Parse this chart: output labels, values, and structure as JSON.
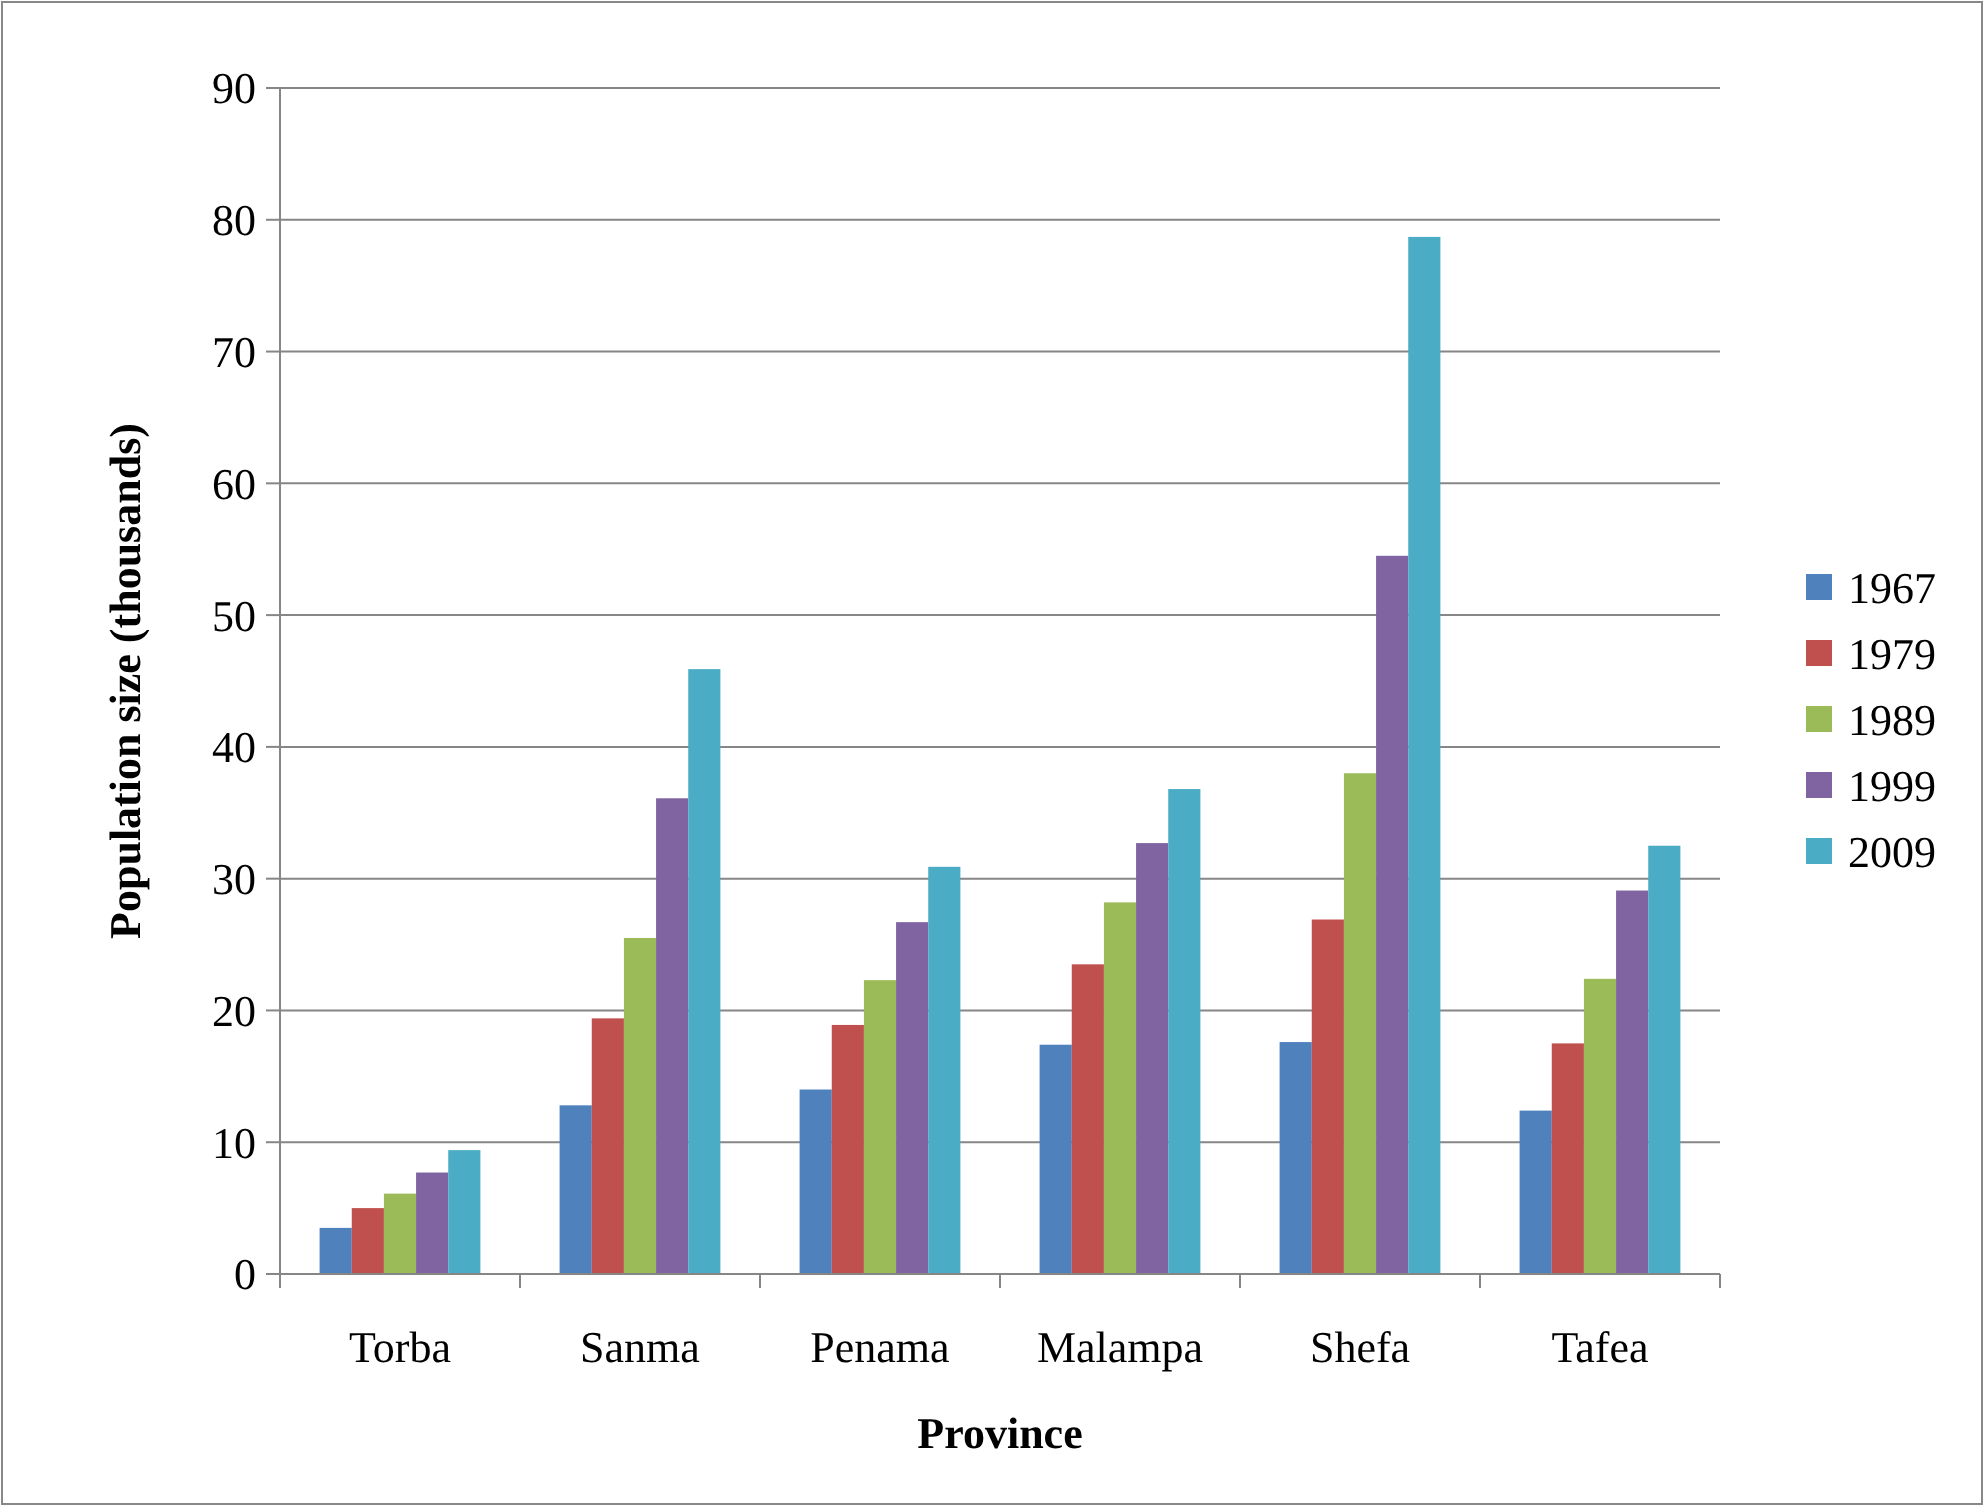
{
  "chart_data": {
    "type": "bar",
    "xlabel": "Province",
    "ylabel": "Population size (thousands)",
    "categories": [
      "Torba",
      "Sanma",
      "Penama",
      "Malampa",
      "Shefa",
      "Tafea"
    ],
    "series": [
      {
        "name": "1967",
        "color": "#4f81bd",
        "values": [
          3.5,
          12.8,
          14.0,
          17.4,
          17.6,
          12.4
        ]
      },
      {
        "name": "1979",
        "color": "#c0504d",
        "values": [
          5.0,
          19.4,
          18.9,
          23.5,
          26.9,
          17.5
        ]
      },
      {
        "name": "1989",
        "color": "#9bbb59",
        "values": [
          6.1,
          25.5,
          22.3,
          28.2,
          38.0,
          22.4
        ]
      },
      {
        "name": "1999",
        "color": "#8064a2",
        "values": [
          7.7,
          36.1,
          26.7,
          32.7,
          54.5,
          29.1
        ]
      },
      {
        "name": "2009",
        "color": "#4bacc6",
        "values": [
          9.4,
          45.9,
          30.9,
          36.8,
          78.7,
          32.5
        ]
      }
    ],
    "ylim": [
      0,
      90
    ],
    "yticks": [
      0,
      10,
      20,
      30,
      40,
      50,
      60,
      70,
      80,
      90
    ],
    "grid": "y",
    "legend": "right"
  }
}
